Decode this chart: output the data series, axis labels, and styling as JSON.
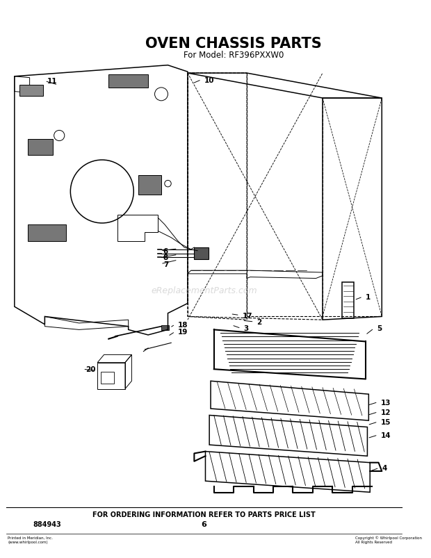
{
  "title": "OVEN CHASSIS PARTS",
  "subtitle": "For Model: RF396PXXW0",
  "footer_text": "FOR ORDERING INFORMATION REFER TO PARTS PRICE LIST",
  "part_number": "884943",
  "page_number": "6",
  "watermark": "eReplacementParts.com",
  "bg_color": "#ffffff",
  "title_fontsize": 15,
  "subtitle_fontsize": 8.5,
  "footer_fontsize": 7,
  "lw_main": 1.1,
  "lw_thin": 0.7,
  "lw_dash": 0.8
}
